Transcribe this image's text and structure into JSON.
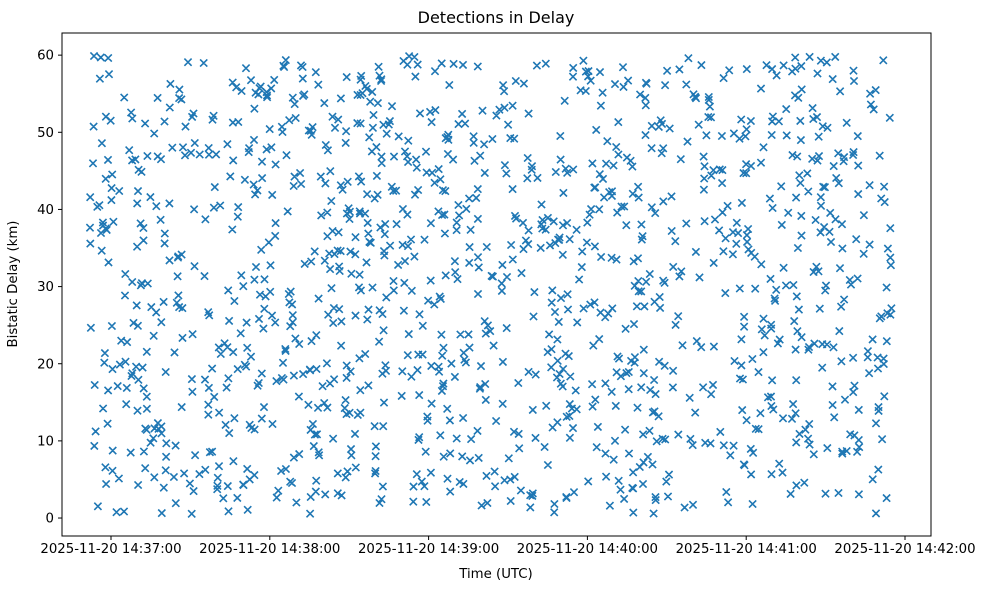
{
  "chart_data": {
    "type": "scatter",
    "title": "Detections in Delay",
    "xlabel": "Time (UTC)",
    "ylabel": "Bistatic Delay (km)",
    "grid": false,
    "legend": "none",
    "marker": "x",
    "marker_color": "#1f77b4",
    "axis_color": "#000000",
    "background_color": "#ffffff",
    "x_tick_labels": [
      "2025-11-20 14:37:00",
      "2025-11-20 14:38:00",
      "2025-11-20 14:39:00",
      "2025-11-20 14:40:00",
      "2025-11-20 14:41:00",
      "2025-11-20 14:42:00"
    ],
    "y_ticks": [
      0,
      10,
      20,
      30,
      40,
      50,
      60
    ],
    "ylim": [
      -2.33,
      62.87
    ],
    "x_reference_tick": "2025-11-20 14:37:00",
    "x_start_seconds": -8,
    "x_end_seconds": 295,
    "points": {
      "distribution": "uniform-random",
      "n": 1300,
      "seed": 20251120,
      "y_min": 0.5,
      "y_max": 59.9
    }
  }
}
